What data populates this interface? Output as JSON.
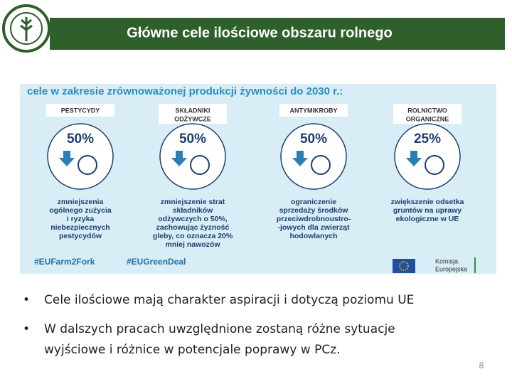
{
  "header": {
    "title": "Główne cele ilościowe obszaru rolnego"
  },
  "infographic": {
    "heading": "cele w zakresie zrównoważonej produkcji żywności do 2030 r.:",
    "items": [
      {
        "label": [
          "PESTYCYDY"
        ],
        "percent": "50%",
        "description": [
          "zmniejszenia",
          "ogólnego zużycia",
          "i ryzyka",
          "niebezpiecznych",
          "pestycydów"
        ]
      },
      {
        "label": [
          "SKŁADNIKI",
          "ODŻYWCZE"
        ],
        "percent": "50%",
        "description": [
          "zmniejszenie strat",
          "składników",
          "odżywczych o 50%,",
          "zachowując żyzność",
          "gleby, co oznacza 20%",
          "mniej nawozów"
        ]
      },
      {
        "label": [
          "ANTYMIKROBY"
        ],
        "percent": "50%",
        "description": [
          "ograniczenie",
          "sprzedaży środków",
          "przeciwdrobnoustro-",
          "-jowych dla zwierząt",
          "hodowlanych"
        ]
      },
      {
        "label": [
          "ROLNICTWO",
          "ORGANICZNE"
        ],
        "percent": "25%",
        "description": [
          "zwiększenie odsetka",
          "gruntów na uprawy",
          "ekologiczne w UE"
        ]
      }
    ],
    "hashtags": [
      "#EUFarm2Fork",
      "#EUGreenDeal"
    ],
    "logo": [
      "Komisja",
      "Europejska"
    ]
  },
  "bullets": [
    [
      "Cele ilościowe mają charakter aspiracji i dotyczą poziomu UE"
    ],
    [
      "W dalszych pracach uwzględnione zostaną różne sytuacje",
      "wyjściowe i różnice w potencjale poprawy w PCz."
    ]
  ],
  "page_number": "8"
}
